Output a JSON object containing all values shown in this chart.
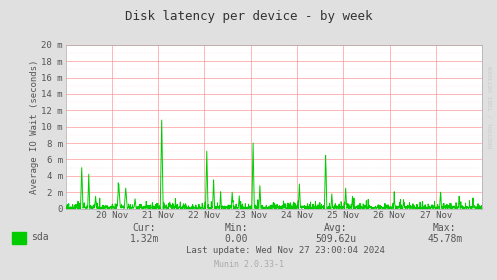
{
  "title": "Disk latency per device - by week",
  "ylabel": "Average IO Wait (seconds)",
  "bg_color": "#e0e0e0",
  "plot_bg_color": "#ffffff",
  "grid_color_major": "#ff9999",
  "grid_color_minor": "#ffcccc",
  "line_color": "#00cc00",
  "ytick_labels": [
    "0",
    "2 m",
    "4 m",
    "6 m",
    "8 m",
    "10 m",
    "12 m",
    "14 m",
    "16 m",
    "18 m",
    "20 m"
  ],
  "ytick_values": [
    0,
    0.002,
    0.004,
    0.006,
    0.008,
    0.01,
    0.012,
    0.014,
    0.016,
    0.018,
    0.02
  ],
  "ymax": 0.02,
  "legend_label": "sda",
  "legend_color": "#00cc00",
  "cur_val": "1.32m",
  "min_val": "0.00",
  "avg_val": "509.62u",
  "max_val": "45.78m",
  "last_update": "Last update: Wed Nov 27 23:00:04 2024",
  "munin_version": "Munin 2.0.33-1",
  "watermark": "RRDTOOL / TOBI OETIKER",
  "xtick_labels": [
    "20 Nov",
    "21 Nov",
    "22 Nov",
    "23 Nov",
    "24 Nov",
    "25 Nov",
    "26 Nov",
    "27 Nov"
  ],
  "font_color": "#555555",
  "title_color": "#333333"
}
